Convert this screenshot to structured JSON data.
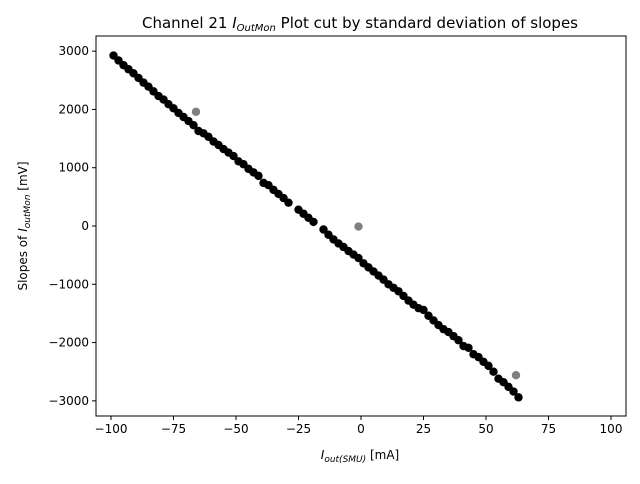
{
  "chart_data": {
    "type": "scatter",
    "title": {
      "prefix": "Channel 21 ",
      "var_main": "I",
      "var_sub": "OutMon",
      "suffix": " Plot cut by standard deviation of slopes"
    },
    "xlabel": {
      "var_main": "I",
      "var_sub": "out(SMU)",
      "suffix": " [mA]"
    },
    "ylabel": {
      "prefix": "Slopes of ",
      "var_main": "I",
      "var_sub": "outMon",
      "suffix": " [mV]"
    },
    "xlim": [
      -106,
      106
    ],
    "ylim": [
      -3260,
      3260
    ],
    "x_ticks": [
      -100,
      -75,
      -50,
      -25,
      0,
      25,
      50,
      75,
      100
    ],
    "y_ticks": [
      -3000,
      -2000,
      -1000,
      0,
      1000,
      2000,
      3000
    ],
    "x_tick_labels": [
      "−100",
      "−75",
      "−50",
      "−25",
      "0",
      "25",
      "50",
      "75",
      "100"
    ],
    "y_tick_labels": [
      "−3000",
      "−2000",
      "−1000",
      "0",
      "1000",
      "2000",
      "3000"
    ],
    "grid": false,
    "colors": {
      "kept": "#000000",
      "cut": "#808080"
    },
    "series": [
      {
        "points": [
          [
            -99,
            2925
          ],
          [
            -97,
            2840
          ],
          [
            -95,
            2760
          ],
          [
            -93,
            2690
          ],
          [
            -91,
            2620
          ],
          [
            -89,
            2540
          ],
          [
            -87,
            2460
          ],
          [
            -85,
            2390
          ],
          [
            -83,
            2310
          ],
          [
            -81,
            2230
          ],
          [
            -79,
            2170
          ],
          [
            -77,
            2090
          ],
          [
            -75,
            2020
          ],
          [
            -73,
            1940
          ],
          [
            -71,
            1870
          ],
          [
            -69,
            1800
          ],
          [
            -67,
            1730
          ],
          [
            -65,
            1630
          ],
          [
            -63,
            1590
          ],
          [
            -61,
            1530
          ],
          [
            -59,
            1450
          ],
          [
            -57,
            1390
          ],
          [
            -55,
            1320
          ],
          [
            -53,
            1260
          ],
          [
            -51,
            1200
          ],
          [
            -49,
            1110
          ],
          [
            -47,
            1060
          ],
          [
            -45,
            980
          ],
          [
            -43,
            920
          ],
          [
            -41,
            860
          ],
          [
            -39,
            740
          ],
          [
            -37,
            700
          ],
          [
            -35,
            620
          ],
          [
            -33,
            550
          ],
          [
            -31,
            480
          ],
          [
            -29,
            400
          ],
          [
            -25,
            280
          ],
          [
            -23,
            210
          ],
          [
            -21,
            140
          ],
          [
            -19,
            70
          ],
          [
            -15,
            -60
          ],
          [
            -13,
            -150
          ],
          [
            -11,
            -230
          ],
          [
            -9,
            -300
          ],
          [
            -7,
            -360
          ],
          [
            -5,
            -430
          ],
          [
            -3,
            -490
          ],
          [
            -1,
            -550
          ],
          [
            1,
            -640
          ],
          [
            3,
            -710
          ],
          [
            5,
            -780
          ],
          [
            7,
            -850
          ],
          [
            9,
            -920
          ],
          [
            11,
            -1000
          ],
          [
            13,
            -1060
          ],
          [
            15,
            -1120
          ],
          [
            17,
            -1200
          ],
          [
            19,
            -1280
          ],
          [
            21,
            -1350
          ],
          [
            23,
            -1410
          ],
          [
            25,
            -1440
          ],
          [
            27,
            -1540
          ],
          [
            29,
            -1620
          ],
          [
            31,
            -1700
          ],
          [
            33,
            -1770
          ],
          [
            35,
            -1820
          ],
          [
            37,
            -1890
          ],
          [
            39,
            -1960
          ],
          [
            41,
            -2060
          ],
          [
            43,
            -2090
          ],
          [
            45,
            -2200
          ],
          [
            47,
            -2250
          ],
          [
            49,
            -2330
          ],
          [
            51,
            -2400
          ],
          [
            53,
            -2500
          ],
          [
            55,
            -2620
          ],
          [
            57,
            -2680
          ],
          [
            59,
            -2760
          ],
          [
            61,
            -2840
          ],
          [
            63,
            -2940
          ]
        ]
      },
      {
        "points": [
          [
            -66,
            1960
          ],
          [
            -1,
            -10
          ],
          [
            62,
            -2560
          ]
        ]
      }
    ]
  }
}
